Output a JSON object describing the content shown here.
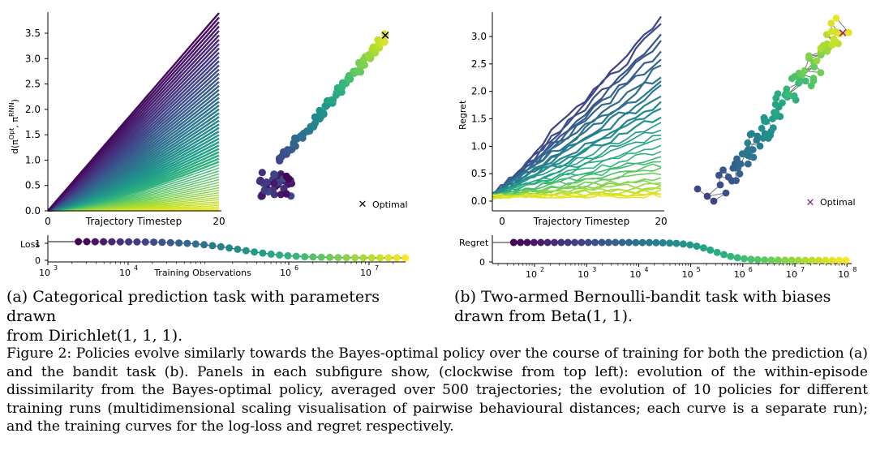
{
  "colors": {
    "viridis": [
      "#440154",
      "#482878",
      "#3e4989",
      "#31688e",
      "#26828e",
      "#1f9e89",
      "#35b779",
      "#6ece58",
      "#b5de2b",
      "#fde725"
    ]
  },
  "panels": {
    "a": {
      "main_plot": {
        "ylabel": "d(π^Opt, π^RNN)",
        "xlabel": "Trajectory Timestep",
        "yticks": [
          "0.0",
          "0.5",
          "1.0",
          "1.5",
          "2.0",
          "2.5",
          "3.0",
          "3.5"
        ],
        "xticks": [
          "0",
          "20"
        ]
      },
      "mds_legend": "Optimal",
      "loss_plot": {
        "ylabel": "Loss",
        "yticks": [
          "1",
          "0"
        ],
        "xlabel": "Training Observations",
        "xticks": [
          "10",
          "10",
          "10",
          "10"
        ],
        "xtick_exponents": [
          "3",
          "4",
          "6",
          "7"
        ]
      },
      "caption_main": "(a) Categorical prediction task with parameters drawn",
      "caption_from": "from",
      "caption_dist": "Dirichlet(1, 1, 1)."
    },
    "b": {
      "main_plot": {
        "ylabel": "Regret",
        "xlabel": "Trajectory Timestep",
        "yticks": [
          "0.0",
          "0.5",
          "1.0",
          "1.5",
          "2.0",
          "2.5",
          "3.0"
        ],
        "xticks": [
          "0",
          "20"
        ]
      },
      "mds_legend": "Optimal",
      "regret_plot": {
        "ylabel": "Regret",
        "yticks": [
          "0"
        ],
        "xticks": [
          "10",
          "10",
          "10",
          "10",
          "10",
          "10",
          "10"
        ],
        "xtick_exponents": [
          "2",
          "3",
          "4",
          "5",
          "6",
          "7",
          "8"
        ]
      },
      "caption_main": "(b) Two-armed Bernoulli-bandit task with biases",
      "caption_from": "drawn from",
      "caption_dist": "Beta(1, 1)."
    }
  },
  "figure_caption": "Figure 2: Policies evolve similarly towards the Bayes-optimal policy over the course of training for both the prediction (a) and the bandit task (b). Panels in each subfigure show, (clockwise from top left): evolution of the within-episode dissimilarity from the Bayes-optimal policy, averaged over 500 trajectories; the evolution of 10 policies for different training runs (multidimensional scaling visualisation of pairwise behavioural distances; each curve is a separate run); and the training curves for the log-loss and regret respectively."
}
